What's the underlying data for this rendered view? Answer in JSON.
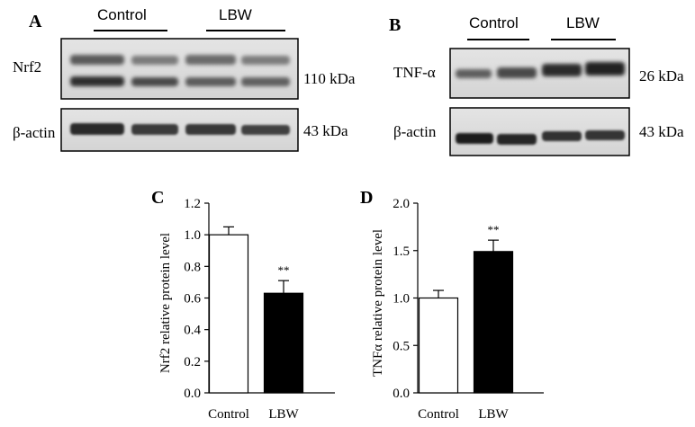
{
  "panels": {
    "A": {
      "letter": "A",
      "group_labels": [
        "Control",
        "LBW"
      ],
      "blots": [
        {
          "protein": "Nrf2",
          "size": "110 kDa"
        },
        {
          "protein": "β-actin",
          "size": "43 kDa"
        }
      ]
    },
    "B": {
      "letter": "B",
      "group_labels": [
        "Control",
        "LBW"
      ],
      "blots": [
        {
          "protein": "TNF-α",
          "size": "26 kDa"
        },
        {
          "protein": "β-actin",
          "size": "43 kDa"
        }
      ]
    }
  },
  "colors": {
    "control_bar": "#ffffff",
    "lbw_bar": "#000000",
    "axis": "#000000"
  },
  "chart_data": [
    {
      "panel": "C",
      "type": "bar",
      "categories": [
        "Control",
        "LBW"
      ],
      "values": [
        1.0,
        0.63
      ],
      "errors": [
        0.05,
        0.08
      ],
      "annotations": [
        "",
        "**"
      ],
      "ylabel": "Nrf2 relative protein level",
      "xlabel": "",
      "ylim": [
        0,
        1.2
      ],
      "yticks": [
        0.0,
        0.2,
        0.4,
        0.6,
        0.8,
        1.0,
        1.2
      ],
      "ytick_labels": [
        "0.0",
        "0.2",
        "0.4",
        "0.6",
        "0.8",
        "1.0",
        "1.2"
      ],
      "grid": false
    },
    {
      "panel": "D",
      "type": "bar",
      "categories": [
        "Control",
        "LBW"
      ],
      "values": [
        1.0,
        1.49
      ],
      "errors": [
        0.08,
        0.12
      ],
      "annotations": [
        "",
        "**"
      ],
      "ylabel": "TNFα relative protein level",
      "xlabel": "",
      "ylim": [
        0,
        2.0
      ],
      "yticks": [
        0.0,
        0.5,
        1.0,
        1.5,
        2.0
      ],
      "ytick_labels": [
        "0.0",
        "0.5",
        "1.0",
        "1.5",
        "2.0"
      ],
      "grid": false
    }
  ]
}
